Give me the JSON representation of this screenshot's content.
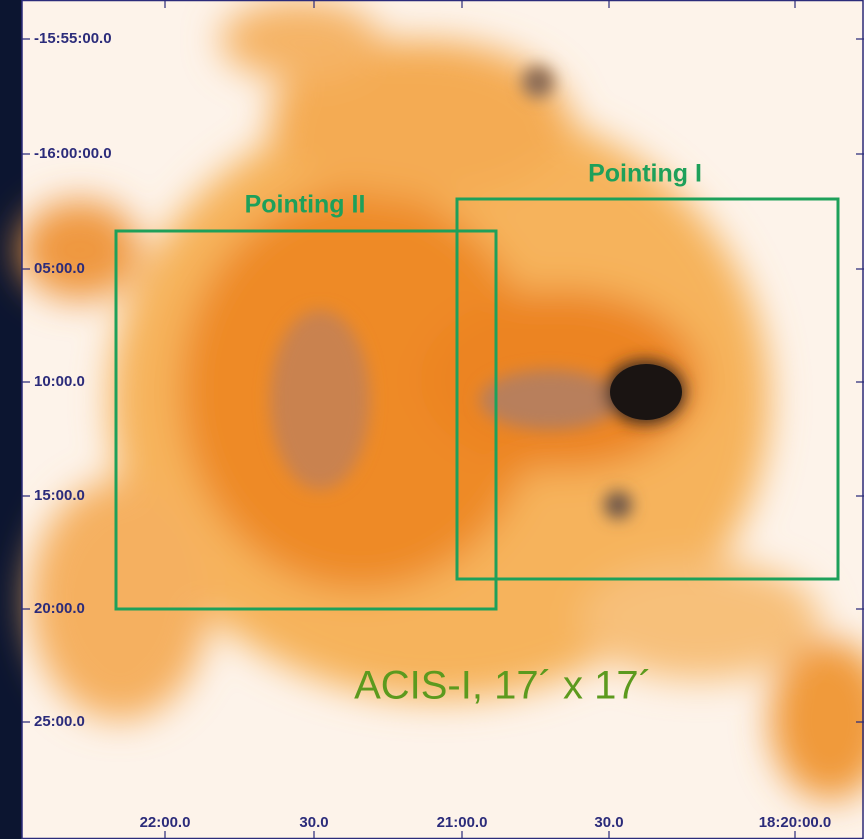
{
  "y_labels": [
    "-15:55:00.0",
    "-16:00:00.0",
    "05:00.0",
    "10:00.0",
    "15:00.0",
    "20:00.0",
    "25:00.0"
  ],
  "x_labels": [
    "22:00.0",
    "30.0",
    "21:00.0",
    "30.0",
    "18:20:00.0"
  ],
  "regions": [
    {
      "label": "Pointing II"
    },
    {
      "label": "Pointing I"
    }
  ],
  "caption": "ACIS-I, 17´ x 17´"
}
